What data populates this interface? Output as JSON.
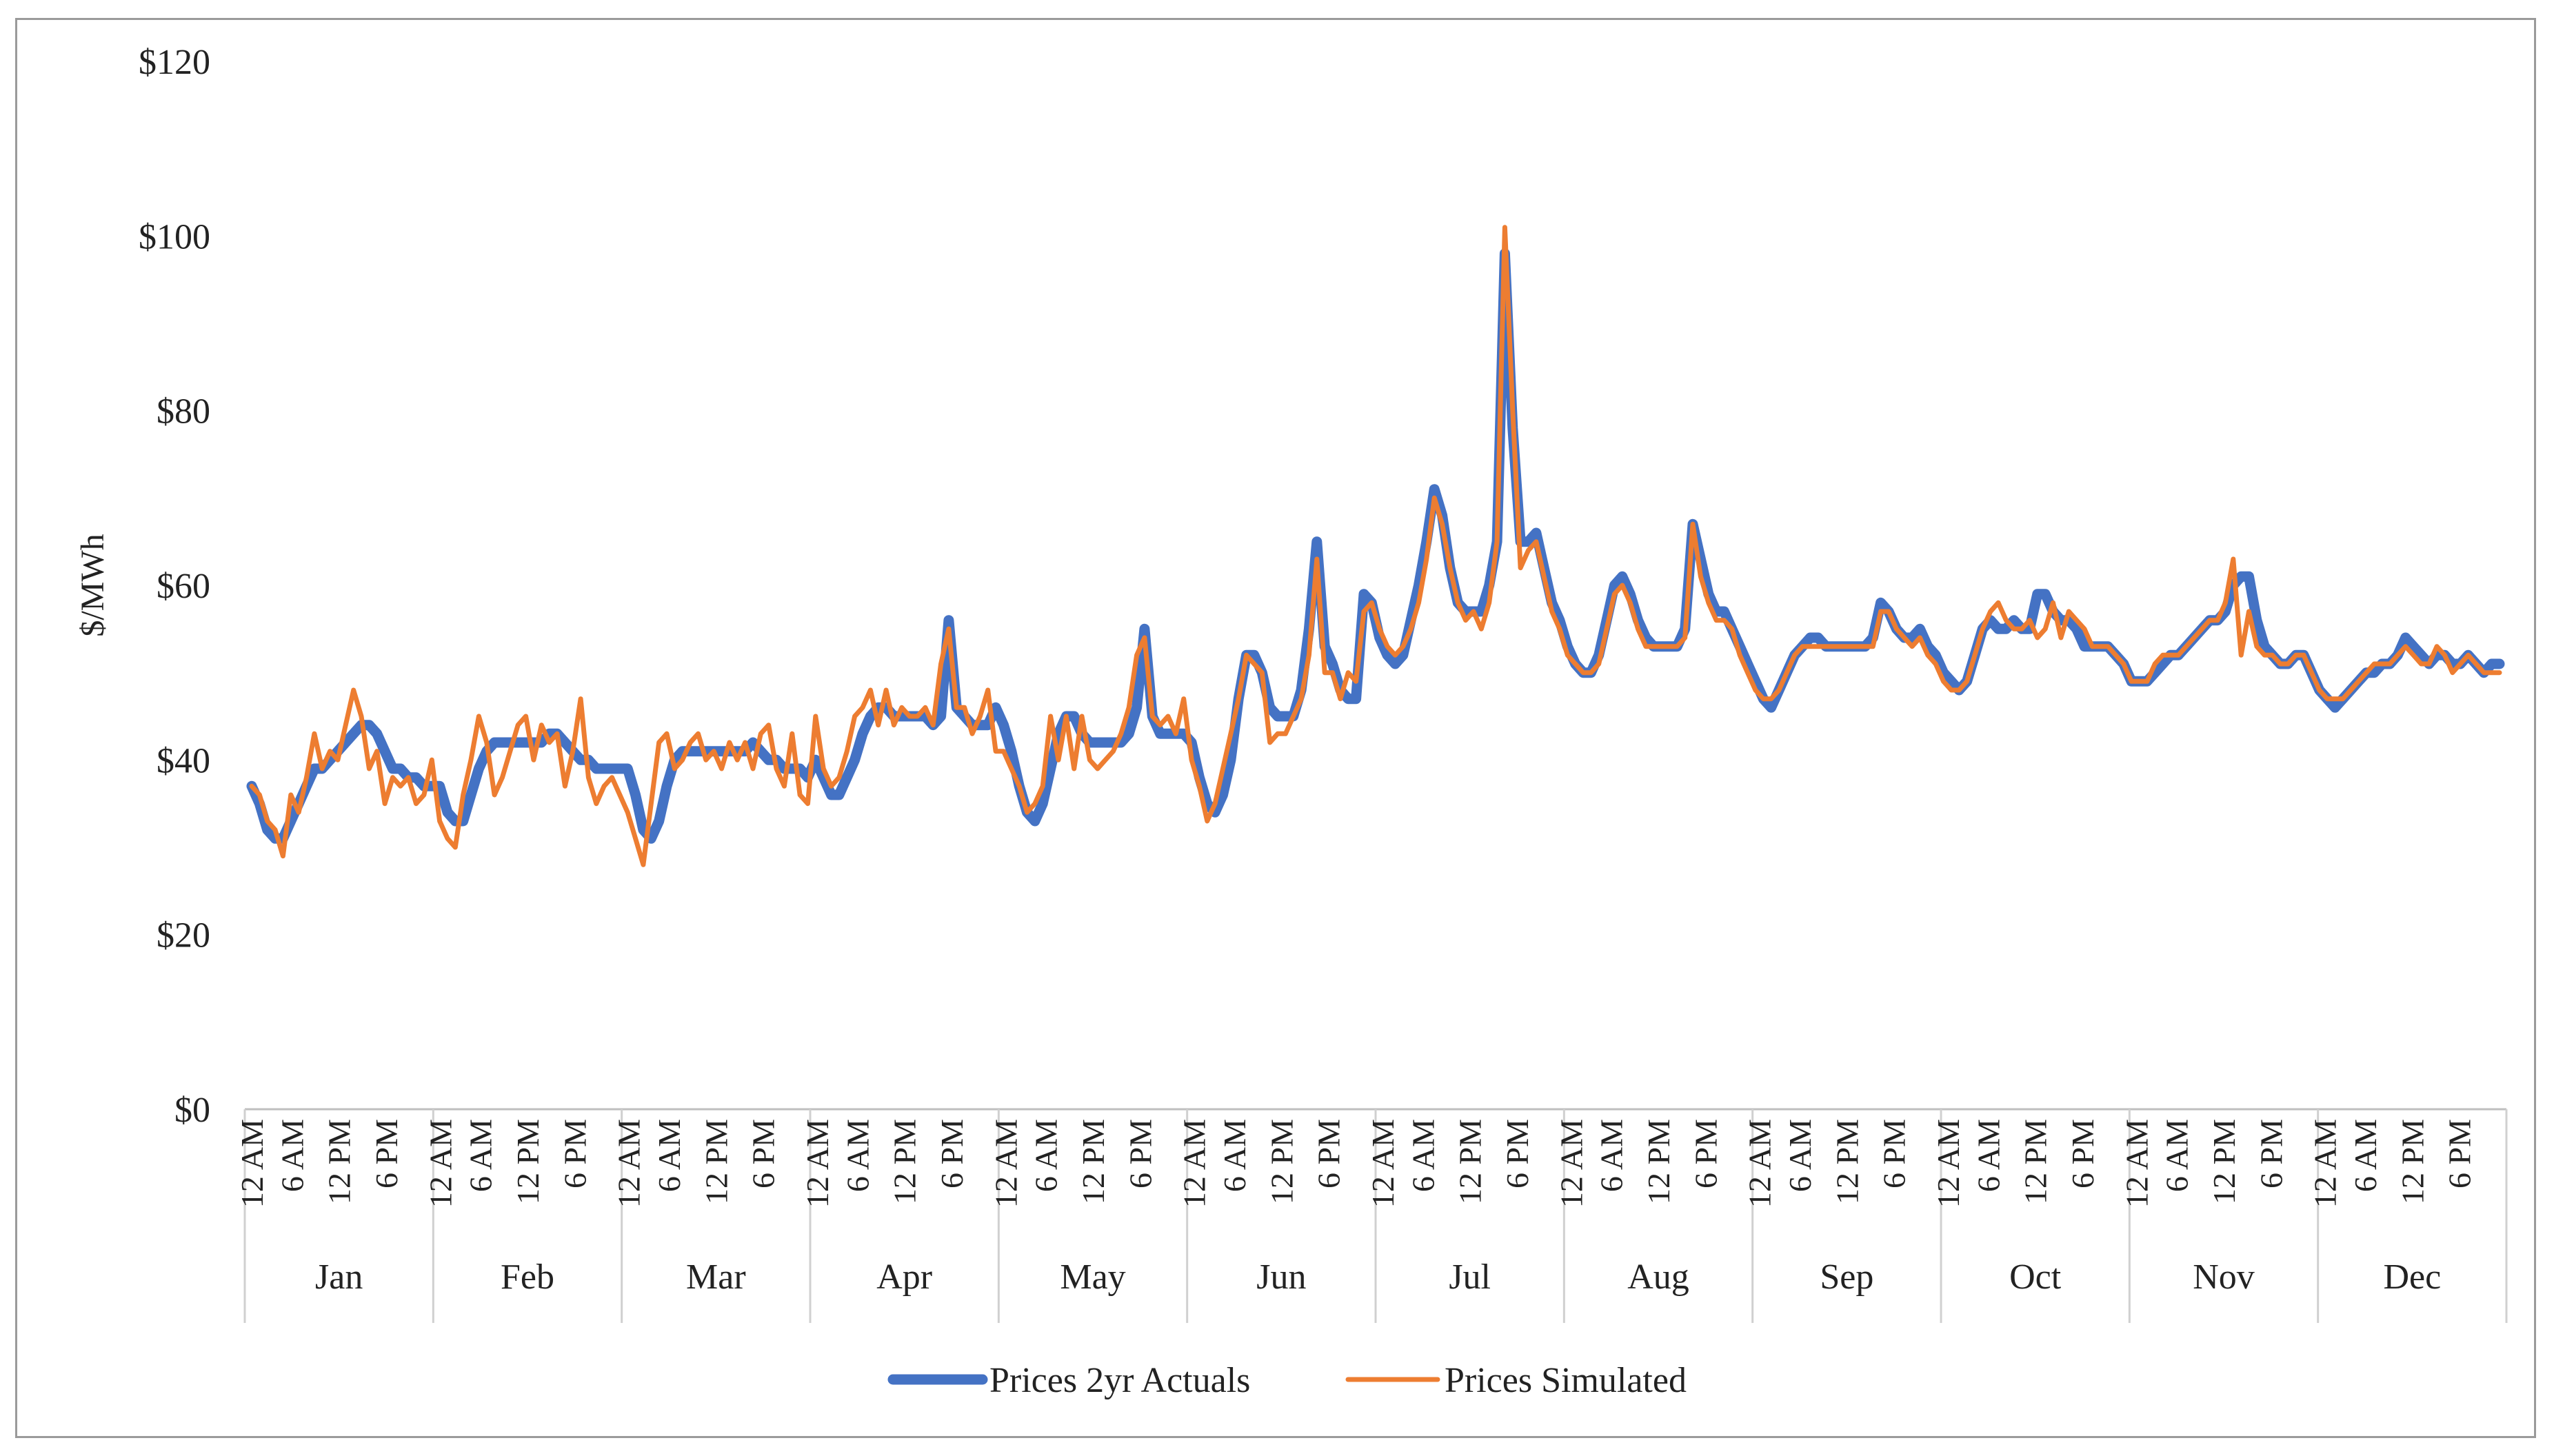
{
  "chart_data": {
    "type": "line",
    "title": "",
    "xlabel": "",
    "ylabel": "$/MWh",
    "ylim": [
      0,
      120
    ],
    "yticks": [
      0,
      20,
      40,
      60,
      80,
      100,
      120
    ],
    "ytick_labels": [
      "$0",
      "$20",
      "$40",
      "$60",
      "$80",
      "$100",
      "$120"
    ],
    "months": [
      "Jan",
      "Feb",
      "Mar",
      "Apr",
      "May",
      "Jun",
      "Jul",
      "Aug",
      "Sep",
      "Oct",
      "Nov",
      "Dec"
    ],
    "hour_labels": [
      "12 AM",
      "6 AM",
      "12 PM",
      "6 PM"
    ],
    "points_per_month": 24,
    "grid": false,
    "legend_position": "bottom",
    "series": [
      {
        "name": "Prices 2yr Actuals",
        "color": "#4472C4",
        "values": [
          37,
          35,
          32,
          31,
          31,
          33,
          35,
          37,
          39,
          39,
          40,
          41,
          42,
          43,
          44,
          44,
          43,
          41,
          39,
          39,
          38,
          38,
          37,
          37,
          37,
          34,
          33,
          33,
          36,
          39,
          41,
          42,
          42,
          42,
          42,
          42,
          42,
          42,
          43,
          43,
          42,
          41,
          40,
          40,
          39,
          39,
          39,
          39,
          39,
          36,
          32,
          31,
          33,
          37,
          40,
          41,
          41,
          41,
          41,
          41,
          41,
          41,
          41,
          41,
          42,
          41,
          40,
          40,
          39,
          39,
          39,
          38,
          40,
          38,
          36,
          36,
          38,
          40,
          43,
          45,
          46,
          46,
          45,
          45,
          45,
          45,
          45,
          44,
          45,
          56,
          46,
          45,
          44,
          44,
          44,
          46,
          44,
          41,
          37,
          34,
          33,
          35,
          39,
          43,
          45,
          45,
          43,
          42,
          42,
          42,
          42,
          42,
          43,
          46,
          55,
          45,
          43,
          43,
          43,
          43,
          42,
          38,
          35,
          34,
          36,
          40,
          47,
          52,
          52,
          50,
          46,
          45,
          45,
          45,
          48,
          55,
          65,
          53,
          51,
          48,
          47,
          47,
          59,
          58,
          54,
          52,
          51,
          52,
          56,
          60,
          65,
          71,
          68,
          62,
          58,
          57,
          57,
          57,
          60,
          65,
          98,
          78,
          65,
          65,
          66,
          62,
          58,
          56,
          53,
          51,
          50,
          50,
          52,
          56,
          60,
          61,
          59,
          56,
          54,
          53,
          53,
          53,
          53,
          55,
          67,
          63,
          59,
          57,
          57,
          55,
          53,
          51,
          49,
          47,
          46,
          48,
          50,
          52,
          53,
          54,
          54,
          53,
          53,
          53,
          53,
          53,
          53,
          54,
          58,
          57,
          55,
          54,
          54,
          55,
          53,
          52,
          50,
          49,
          48,
          49,
          52,
          55,
          56,
          55,
          55,
          56,
          55,
          55,
          59,
          59,
          57,
          56,
          56,
          55,
          53,
          53,
          53,
          53,
          52,
          51,
          49,
          49,
          49,
          50,
          51,
          52,
          52,
          53,
          54,
          55,
          56,
          56,
          57,
          60,
          61,
          61,
          56,
          53,
          52,
          51,
          51,
          52,
          52,
          50,
          48,
          47,
          46,
          47,
          48,
          49,
          50,
          50,
          51,
          51,
          52,
          54,
          53,
          52,
          51,
          52,
          52,
          51,
          51,
          52,
          51,
          50,
          51,
          51
        ]
      },
      {
        "name": "Prices Simulated",
        "color": "#ED7D31",
        "values": [
          37,
          36,
          33,
          32,
          29,
          36,
          34,
          38,
          43,
          39,
          41,
          40,
          44,
          48,
          45,
          39,
          41,
          35,
          38,
          37,
          38,
          35,
          36,
          40,
          33,
          31,
          30,
          36,
          40,
          45,
          42,
          36,
          38,
          41,
          44,
          45,
          40,
          44,
          42,
          43,
          37,
          41,
          47,
          38,
          35,
          37,
          38,
          36,
          34,
          31,
          28,
          35,
          42,
          43,
          39,
          40,
          42,
          43,
          40,
          41,
          39,
          42,
          40,
          42,
          39,
          43,
          44,
          39,
          37,
          43,
          36,
          35,
          45,
          39,
          37,
          38,
          41,
          45,
          46,
          48,
          44,
          48,
          44,
          46,
          45,
          45,
          46,
          44,
          51,
          55,
          46,
          46,
          43,
          45,
          48,
          41,
          41,
          39,
          37,
          34,
          35,
          37,
          45,
          40,
          45,
          39,
          45,
          40,
          39,
          40,
          41,
          43,
          46,
          52,
          54,
          45,
          44,
          45,
          43,
          47,
          40,
          37,
          33,
          35,
          39,
          43,
          47,
          52,
          51,
          50,
          42,
          43,
          43,
          45,
          47,
          52,
          63,
          50,
          50,
          47,
          50,
          49,
          57,
          58,
          55,
          53,
          52,
          53,
          55,
          58,
          63,
          70,
          67,
          62,
          58,
          56,
          57,
          55,
          58,
          65,
          101,
          80,
          62,
          64,
          65,
          61,
          57,
          55,
          52,
          51,
          50,
          50,
          51,
          55,
          59,
          60,
          58,
          55,
          53,
          53,
          53,
          53,
          53,
          54,
          67,
          61,
          58,
          56,
          56,
          55,
          52,
          50,
          48,
          47,
          47,
          48,
          50,
          52,
          53,
          53,
          53,
          53,
          53,
          53,
          53,
          53,
          53,
          53,
          57,
          57,
          55,
          54,
          53,
          54,
          52,
          51,
          49,
          48,
          48,
          49,
          52,
          55,
          57,
          58,
          56,
          55,
          55,
          56,
          54,
          55,
          58,
          54,
          57,
          56,
          55,
          53,
          53,
          53,
          52,
          51,
          49,
          49,
          49,
          51,
          52,
          52,
          52,
          53,
          54,
          55,
          56,
          56,
          58,
          63,
          52,
          57,
          53,
          52,
          52,
          51,
          51,
          52,
          52,
          50,
          48,
          47,
          47,
          47,
          48,
          49,
          50,
          51,
          51,
          51,
          52,
          53,
          52,
          51,
          51,
          53,
          52,
          50,
          51,
          52,
          51,
          50,
          50,
          50
        ]
      }
    ]
  }
}
